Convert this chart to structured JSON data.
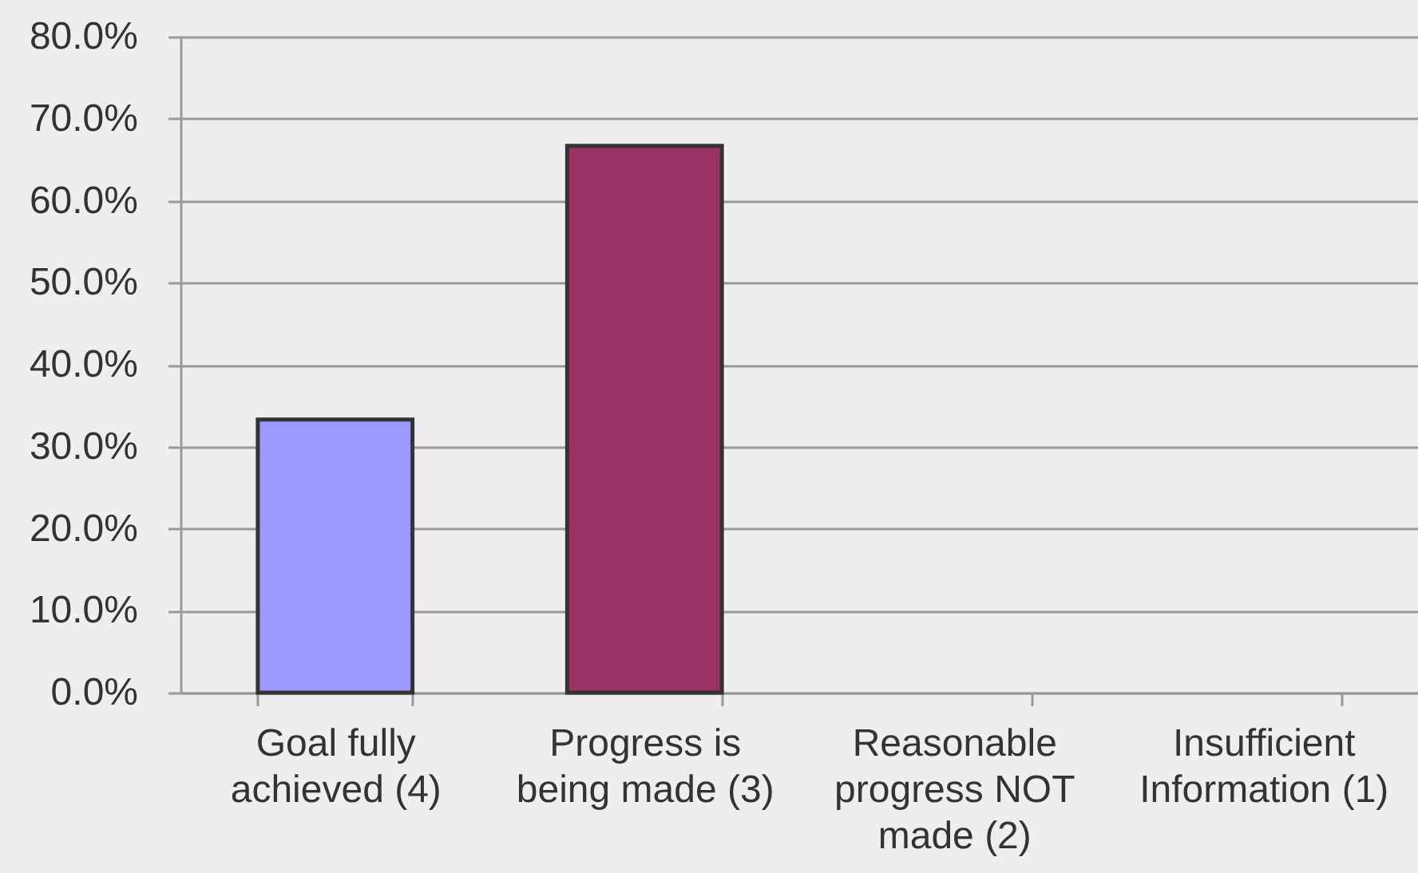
{
  "chart_data": {
    "type": "bar",
    "categories": [
      "Goal fully achieved (4)",
      "Progress is being made (3)",
      "Reasonable progress NOT made (2)",
      "Insufficient Information (1)"
    ],
    "values": [
      33.3,
      66.7,
      0,
      0
    ],
    "colors": [
      "#9999ff",
      "#993366",
      "#ffffcc",
      "#ccffff"
    ],
    "ylim": [
      0,
      80
    ],
    "yticks": [
      {
        "value": 0,
        "label": "0.0%"
      },
      {
        "value": 10,
        "label": "10.0%"
      },
      {
        "value": 20,
        "label": "20.0%"
      },
      {
        "value": 30,
        "label": "30.0%"
      },
      {
        "value": 40,
        "label": "40.0%"
      },
      {
        "value": 50,
        "label": "50.0%"
      },
      {
        "value": 60,
        "label": "60.0%"
      },
      {
        "value": 70,
        "label": "70.0%"
      },
      {
        "value": 80,
        "label": "80.0%"
      }
    ],
    "grid": "y"
  }
}
